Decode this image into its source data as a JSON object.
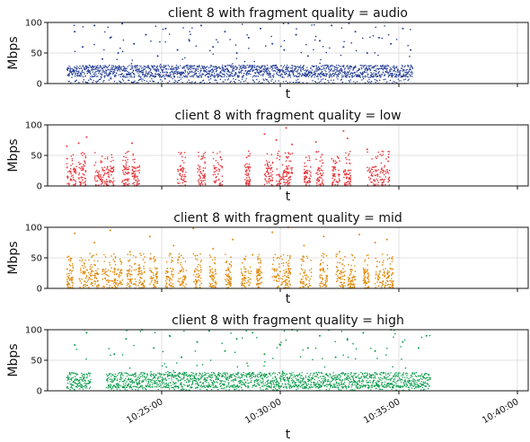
{
  "chart_data": [
    {
      "type": "scatter",
      "title": "client 8 with fragment quality = audio",
      "xlabel": "t",
      "ylabel": "Mbps",
      "ylim": [
        0,
        100
      ],
      "yticks": [
        "0",
        "50",
        "100"
      ],
      "color": "#1f3a93",
      "grid": "y",
      "x_start": "10:21:00",
      "x_end": "10:35:35",
      "baseline_range": [
        10,
        30
      ],
      "series": [
        {
          "x": [
            "10:21:20",
            "10:21:40",
            "10:22:10",
            "10:22:30",
            "10:22:50",
            "10:23:10",
            "10:23:20",
            "10:23:50",
            "10:24:20",
            "10:24:50",
            "10:25:10",
            "10:25:40",
            "10:26:10",
            "10:26:40",
            "10:27:10",
            "10:27:40",
            "10:28:10",
            "10:28:40",
            "10:29:10",
            "10:29:40",
            "10:30:10",
            "10:30:40",
            "10:31:10",
            "10:31:40",
            "10:32:10",
            "10:32:40",
            "10:33:10",
            "10:33:40",
            "10:34:10",
            "10:34:40",
            "10:35:10",
            "10:35:30"
          ],
          "y": [
            85,
            60,
            95,
            40,
            75,
            50,
            98,
            65,
            80,
            45,
            90,
            55,
            70,
            95,
            60,
            85,
            50,
            75,
            90,
            65,
            55,
            80,
            45,
            70,
            95,
            60,
            85,
            50,
            75,
            65,
            90,
            55
          ]
        }
      ]
    },
    {
      "type": "scatter",
      "title": "client 8 with fragment quality = low",
      "xlabel": "t",
      "ylabel": "Mbps",
      "ylim": [
        0,
        100
      ],
      "yticks": [
        "0",
        "50",
        "100"
      ],
      "color": "#e8383d",
      "grid": "y",
      "clusters": [
        "10:21:00",
        "10:21:30",
        "10:22:10",
        "10:22:40",
        "10:23:20",
        "10:23:45",
        "10:25:40",
        "10:26:30",
        "10:27:10",
        "10:28:30",
        "10:29:20",
        "10:29:50",
        "10:30:15",
        "10:31:00",
        "10:31:30",
        "10:32:10",
        "10:32:40",
        "10:33:40",
        "10:34:10"
      ],
      "series": [
        {
          "x": [
            "10:21:00",
            "10:21:30",
            "10:21:50",
            "10:23:45",
            "10:29:20",
            "10:29:50",
            "10:30:15",
            "10:30:30",
            "10:31:30",
            "10:32:40",
            "10:32:50",
            "10:33:40"
          ],
          "y": [
            65,
            70,
            80,
            70,
            85,
            75,
            95,
            68,
            72,
            90,
            78,
            60
          ]
        }
      ]
    },
    {
      "type": "scatter",
      "title": "client 8 with fragment quality = mid",
      "xlabel": "t",
      "ylabel": "Mbps",
      "ylim": [
        0,
        100
      ],
      "yticks": [
        "0",
        "50",
        "100"
      ],
      "color": "#e08a0b",
      "grid": "y",
      "clusters": [
        "10:21:00",
        "10:21:30",
        "10:22:00",
        "10:22:30",
        "10:23:00",
        "10:23:30",
        "10:24:00",
        "10:24:30",
        "10:25:10",
        "10:25:40",
        "10:26:20",
        "10:27:00",
        "10:27:40",
        "10:28:20",
        "10:29:00",
        "10:29:40",
        "10:30:10",
        "10:30:50",
        "10:31:40",
        "10:32:20",
        "10:32:50",
        "10:33:30",
        "10:34:00",
        "10:34:30"
      ],
      "series": [
        {
          "x": [
            "10:21:20",
            "10:22:10",
            "10:22:50",
            "10:23:40",
            "10:24:30",
            "10:25:30",
            "10:26:20",
            "10:27:10",
            "10:28:00",
            "10:28:50",
            "10:29:40",
            "10:30:20",
            "10:31:00",
            "10:31:50",
            "10:32:30",
            "10:33:20",
            "10:34:00",
            "10:34:30"
          ],
          "y": [
            90,
            75,
            95,
            60,
            85,
            70,
            98,
            65,
            80,
            55,
            92,
            100,
            70,
            85,
            60,
            88,
            75,
            80
          ]
        }
      ]
    },
    {
      "type": "scatter",
      "title": "client 8 with fragment quality = high",
      "xlabel": "t",
      "ylabel": "Mbps",
      "ylim": [
        0,
        100
      ],
      "yticks": [
        "0",
        "50",
        "100"
      ],
      "color": "#0a9b4a",
      "grid": "y",
      "x_start": "10:21:00",
      "x_end": "10:36:20",
      "gaps": [
        [
          "10:22:00",
          "10:22:40"
        ]
      ],
      "baseline_range": [
        5,
        30
      ],
      "series": [
        {
          "x": [
            "10:21:20",
            "10:21:50",
            "10:23:00",
            "10:23:30",
            "10:24:10",
            "10:24:40",
            "10:25:20",
            "10:25:50",
            "10:26:30",
            "10:27:00",
            "10:27:40",
            "10:28:10",
            "10:28:50",
            "10:29:20",
            "10:30:00",
            "10:30:30",
            "10:31:10",
            "10:31:40",
            "10:32:20",
            "10:32:50",
            "10:33:30",
            "10:34:00",
            "10:34:40",
            "10:35:10",
            "10:35:50",
            "10:36:10"
          ],
          "y": [
            75,
            95,
            60,
            85,
            100,
            70,
            90,
            55,
            80,
            98,
            65,
            85,
            95,
            60,
            75,
            100,
            70,
            90,
            55,
            85,
            95,
            65,
            100,
            80,
            70,
            90
          ]
        }
      ],
      "xticks": [
        "10:25:00",
        "10:30:00",
        "10:35:00",
        "10:40:00"
      ]
    }
  ]
}
